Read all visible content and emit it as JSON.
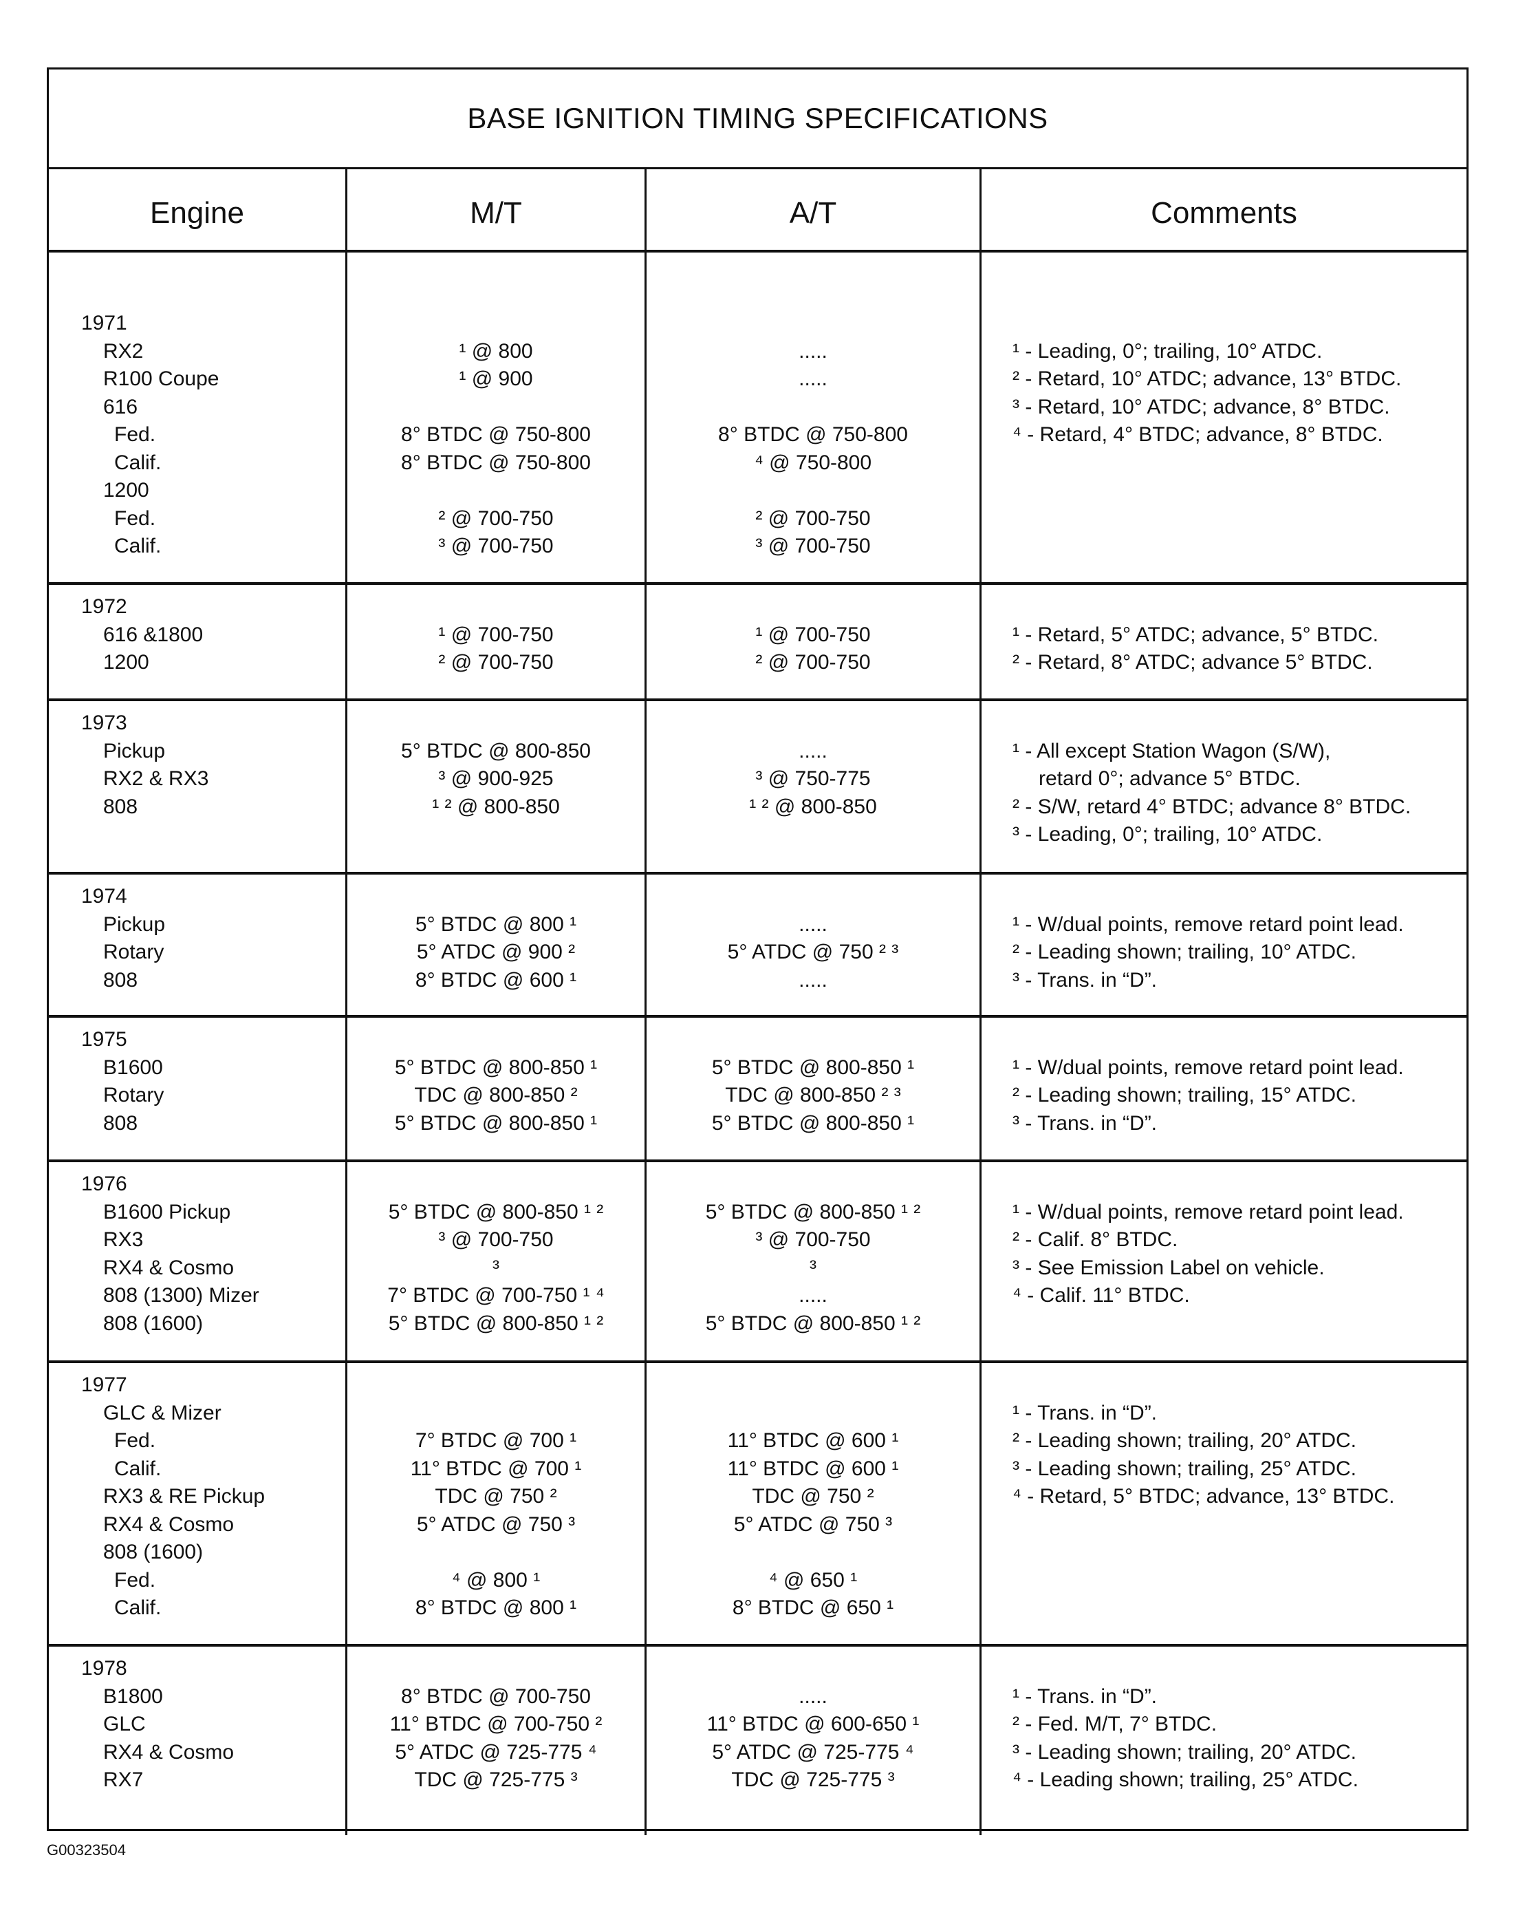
{
  "title": "BASE IGNITION TIMING SPECIFICATIONS",
  "headers": [
    "Engine",
    "M/T",
    "A/T",
    "Comments"
  ],
  "groups": [
    {
      "year": "1971",
      "lines": [
        {
          "engine": "RX2",
          "mt": "¹ @ 800",
          "at": "....."
        },
        {
          "engine": "R100 Coupe",
          "mt": "¹ @ 900",
          "at": "....."
        },
        {
          "engine": "616",
          "mt": "",
          "at": ""
        },
        {
          "engine": "Fed.",
          "sub": true,
          "mt": "8° BTDC @ 750-800",
          "at": "8° BTDC @ 750-800"
        },
        {
          "engine": "Calif.",
          "sub": true,
          "mt": "8° BTDC @ 750-800",
          "at": "⁴ @ 750-800"
        },
        {
          "engine": "1200",
          "mt": "",
          "at": ""
        },
        {
          "engine": "Fed.",
          "sub": true,
          "mt": "² @ 700-750",
          "at": "² @ 700-750"
        },
        {
          "engine": "Calif.",
          "sub": true,
          "mt": "³ @ 700-750",
          "at": "³ @ 700-750"
        }
      ],
      "comments": [
        "¹ - Leading, 0°; trailing, 10° ATDC.",
        "² - Retard, 10° ATDC; advance, 13° BTDC.",
        "³ - Retard, 10° ATDC; advance, 8° BTDC.",
        "⁴ - Retard, 4° BTDC; advance, 8° BTDC."
      ]
    },
    {
      "year": "1972",
      "lines": [
        {
          "engine": "616 &1800",
          "mt": "¹ @ 700-750",
          "at": "¹  @ 700-750"
        },
        {
          "engine": "1200",
          "mt": "² @ 700-750",
          "at": "² @ 700-750"
        }
      ],
      "comments": [
        "¹ - Retard, 5° ATDC; advance, 5° BTDC.",
        "² - Retard, 8° ATDC; advance 5° BTDC."
      ]
    },
    {
      "year": "1973",
      "lines": [
        {
          "engine": "Pickup",
          "mt": "5° BTDC @ 800-850",
          "at": "....."
        },
        {
          "engine": "RX2 & RX3",
          "mt": "³ @ 900-925",
          "at": "³ @ 750-775"
        },
        {
          "engine": "808",
          "mt": "¹ ² @ 800-850",
          "at": "¹ ² @ 800-850"
        }
      ],
      "comments": [
        "¹ - All except Station Wagon (S/W),",
        "   retard 0°; advance 5° BTDC.",
        "² - S/W, retard 4° BTDC; advance 8° BTDC.",
        "³ - Leading, 0°; trailing, 10° ATDC."
      ]
    },
    {
      "year": "1974",
      "lines": [
        {
          "engine": "Pickup",
          "mt": "5° BTDC @ 800 ¹",
          "at": "....."
        },
        {
          "engine": "Rotary",
          "mt": "5° ATDC @ 900 ²",
          "at": "5° ATDC @ 750 ² ³"
        },
        {
          "engine": "808",
          "mt": "8° BTDC @ 600 ¹",
          "at": "....."
        }
      ],
      "comments": [
        "¹ - W/dual points, remove retard point lead.",
        "² - Leading shown; trailing, 10° ATDC.",
        "³ - Trans. in “D”."
      ]
    },
    {
      "year": "1975",
      "lines": [
        {
          "engine": "B1600",
          "mt": "5° BTDC @ 800-850 ¹",
          "at": "5° BTDC @ 800-850 ¹"
        },
        {
          "engine": "Rotary",
          "mt": "TDC @ 800-850 ²",
          "at": "TDC @ 800-850 ² ³"
        },
        {
          "engine": "808",
          "mt": "5° BTDC @ 800-850 ¹",
          "at": "5° BTDC @ 800-850 ¹"
        }
      ],
      "comments": [
        "¹ - W/dual points, remove retard point lead.",
        "² - Leading shown; trailing, 15° ATDC.",
        "³ - Trans. in “D”."
      ]
    },
    {
      "year": "1976",
      "lines": [
        {
          "engine": "B1600 Pickup",
          "mt": "5° BTDC @ 800-850 ¹ ²",
          "at": "5° BTDC @ 800-850 ¹ ²"
        },
        {
          "engine": "RX3",
          "mt": "³ @ 700-750",
          "at": "³ @ 700-750"
        },
        {
          "engine": "RX4 & Cosmo",
          "mt": "³",
          "at": "³"
        },
        {
          "engine": "808 (1300) Mizer",
          "mt": "7° BTDC @ 700-750 ¹ ⁴",
          "at": "....."
        },
        {
          "engine": "808 (1600)",
          "mt": "5° BTDC @ 800-850 ¹ ²",
          "at": "5° BTDC @ 800-850 ¹ ²"
        }
      ],
      "comments": [
        "¹ - W/dual points, remove retard point lead.",
        "² - Calif. 8° BTDC.",
        "³ - See Emission Label on vehicle.",
        "⁴ - Calif. 11° BTDC."
      ]
    },
    {
      "year": "1977",
      "lines": [
        {
          "engine": "GLC & Mizer",
          "mt": "",
          "at": ""
        },
        {
          "engine": "Fed.",
          "sub": true,
          "mt": "7° BTDC @ 700 ¹",
          "at": "11° BTDC @ 600 ¹"
        },
        {
          "engine": "Calif.",
          "sub": true,
          "mt": "11° BTDC @ 700 ¹",
          "at": "11° BTDC @ 600 ¹"
        },
        {
          "engine": "RX3 & RE Pickup",
          "mt": "TDC @ 750 ²",
          "at": "TDC @ 750 ²"
        },
        {
          "engine": "RX4 & Cosmo",
          "mt": "5° ATDC @ 750 ³",
          "at": "5° ATDC @ 750 ³"
        },
        {
          "engine": "808 (1600)",
          "mt": "",
          "at": ""
        },
        {
          "engine": "Fed.",
          "sub": true,
          "mt": "⁴ @ 800 ¹",
          "at": "⁴ @ 650 ¹"
        },
        {
          "engine": "Calif.",
          "sub": true,
          "mt": "8° BTDC @ 800 ¹",
          "at": "8° BTDC @ 650 ¹"
        }
      ],
      "comments": [
        "¹ - Trans. in “D”.",
        "² - Leading shown; trailing, 20° ATDC.",
        "³ - Leading shown; trailing, 25° ATDC.",
        "⁴ - Retard, 5° BTDC; advance, 13° BTDC."
      ]
    },
    {
      "year": "1978",
      "lines": [
        {
          "engine": "B1800",
          "mt": "8° BTDC @ 700-750",
          "at": "....."
        },
        {
          "engine": "GLC",
          "mt": "11° BTDC @ 700-750 ²",
          "at": "11° BTDC @ 600-650 ¹"
        },
        {
          "engine": "RX4 & Cosmo",
          "mt": "5° ATDC @ 725-775 ⁴",
          "at": "5° ATDC @ 725-775 ⁴"
        },
        {
          "engine": "RX7",
          "mt": "TDC @ 725-775 ³",
          "at": "TDC @ 725-775 ³"
        }
      ],
      "comments": [
        "¹ - Trans. in “D”.",
        "² - Fed. M/T, 7° BTDC.",
        "³ - Leading shown; trailing, 20° ATDC.",
        "⁴ - Leading shown; trailing, 25° ATDC."
      ]
    }
  ],
  "figure_code": "G00323504"
}
